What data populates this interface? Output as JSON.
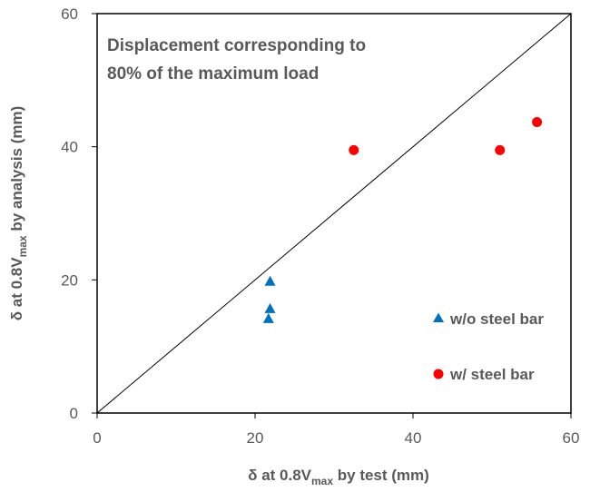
{
  "chart_data": {
    "type": "scatter",
    "title": "",
    "annotation": [
      "Displacement corresponding to",
      "80% of the maximum load"
    ],
    "xlabel": {
      "prefix": "δ at 0.8V",
      "sub": "max",
      "suffix": " by test (mm)"
    },
    "ylabel": {
      "prefix": "δ at 0.8V",
      "sub": "max",
      "suffix": " by analysis (mm)"
    },
    "xlim": [
      0,
      60
    ],
    "ylim": [
      0,
      60
    ],
    "x_ticks": [
      0,
      20,
      40,
      60
    ],
    "y_ticks": [
      0,
      20,
      40,
      60
    ],
    "x_tick_labels": [
      "0",
      "20",
      "40",
      "60"
    ],
    "y_tick_labels": [
      "0",
      "20",
      "40",
      "60"
    ],
    "grid": false,
    "reference_line": {
      "from": [
        0,
        0
      ],
      "to": [
        60,
        60
      ],
      "color": "#000000"
    },
    "legend_position": "bottom-right",
    "series": [
      {
        "name": "w/o steel bar",
        "marker": "triangle",
        "color": "#0070C0",
        "points": [
          [
            21.9,
            19.8
          ],
          [
            21.9,
            15.7
          ],
          [
            21.7,
            14.2
          ]
        ]
      },
      {
        "name": "w/ steel bar",
        "marker": "circle",
        "color": "#FF0000",
        "points": [
          [
            32.5,
            39.5
          ],
          [
            51.0,
            39.5
          ],
          [
            55.7,
            43.7
          ]
        ]
      }
    ]
  }
}
